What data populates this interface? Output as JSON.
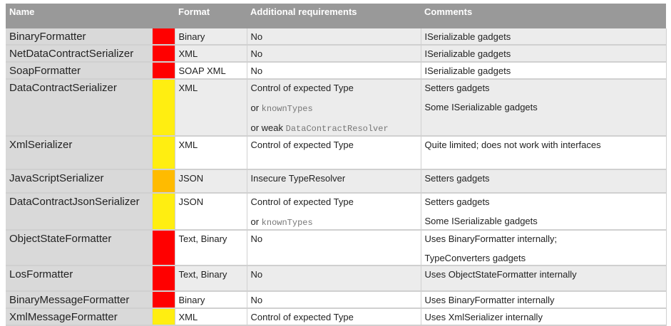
{
  "headers": [
    "Name",
    "",
    "Format",
    "Additional requirements",
    "Comments"
  ],
  "colors": {
    "red": "#ff0000",
    "yellow": "#ffee11",
    "orange": "#ffbb00"
  },
  "rows": [
    {
      "name": "BinaryFormatter",
      "risk": "red",
      "format": "Binary",
      "req": [
        [
          "No",
          ""
        ]
      ],
      "comments": [
        "ISerializable gadgets"
      ],
      "bg": "g",
      "h": 23
    },
    {
      "name": "NetDataContractSerializer",
      "risk": "red",
      "format": "XML",
      "req": [
        [
          "No",
          ""
        ]
      ],
      "comments": [
        "ISerializable gadgets"
      ],
      "bg": "g",
      "h": 23
    },
    {
      "name": "SoapFormatter",
      "risk": "red",
      "format": "SOAP XML",
      "req": [
        [
          "No",
          ""
        ]
      ],
      "comments": [
        "ISerializable gadgets"
      ],
      "bg": "w",
      "h": 23
    },
    {
      "name": "DataContractSerializer",
      "risk": "yellow",
      "format": "XML",
      "req": [
        [
          "Control of expected Type",
          ""
        ],
        [
          "or ",
          "knownTypes"
        ],
        [
          "or weak ",
          "DataContractResolver"
        ]
      ],
      "comments": [
        "Setters gadgets",
        "Some ISerializable gadgets"
      ],
      "bg": "g",
      "h": 78
    },
    {
      "name": "XmlSerializer",
      "risk": "yellow",
      "format": "XML",
      "req": [
        [
          "Control of expected Type",
          ""
        ]
      ],
      "comments": [
        "Quite limited; does not work with interfaces"
      ],
      "bg": "w",
      "h": 47
    },
    {
      "name": "JavaScriptSerializer",
      "risk": "orange",
      "format": "JSON",
      "req": [
        [
          "Insecure TypeResolver",
          ""
        ]
      ],
      "comments": [
        "Setters gadgets"
      ],
      "bg": "g",
      "h": 33
    },
    {
      "name": "DataContractJsonSerializer",
      "risk": "yellow",
      "format": "JSON",
      "req": [
        [
          "Control of expected Type",
          ""
        ],
        [
          "or ",
          "knownTypes"
        ]
      ],
      "comments": [
        "Setters gadgets",
        "Some ISerializable gadgets"
      ],
      "bg": "w",
      "h": 50
    },
    {
      "name": "ObjectStateFormatter",
      "risk": "red",
      "format": "Text, Binary",
      "req": [
        [
          "No",
          ""
        ]
      ],
      "comments": [
        "Uses BinaryFormatter internally;",
        "TypeConverters gadgets"
      ],
      "bg": "w",
      "h": 49
    },
    {
      "name": "LosFormatter",
      "risk": "red",
      "format": "Text, Binary",
      "req": [
        [
          "No",
          ""
        ]
      ],
      "comments": [
        "Uses ObjectStateFormatter internally"
      ],
      "bg": "g",
      "h": 36
    },
    {
      "name": "BinaryMessageFormatter",
      "risk": "red",
      "format": "Binary",
      "req": [
        [
          "No",
          ""
        ]
      ],
      "comments": [
        "Uses BinaryFormatter internally"
      ],
      "bg": "w",
      "h": 23
    },
    {
      "name": "XmlMessageFormatter",
      "risk": "yellow",
      "format": "XML",
      "req": [
        [
          "Control of expected Type",
          ""
        ]
      ],
      "comments": [
        "Uses XmlSerializer internally"
      ],
      "bg": "w",
      "h": 23
    }
  ]
}
